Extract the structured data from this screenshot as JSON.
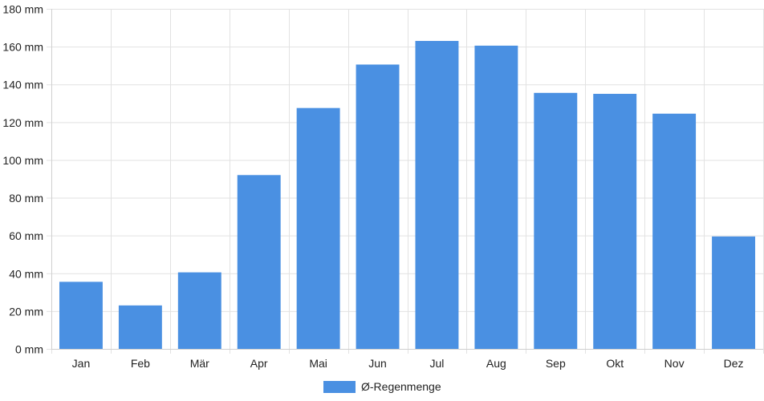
{
  "chart_data": {
    "type": "bar",
    "categories": [
      "Jan",
      "Feb",
      "Mär",
      "Apr",
      "Mai",
      "Jun",
      "Jul",
      "Aug",
      "Sep",
      "Okt",
      "Nov",
      "Dez"
    ],
    "series": [
      {
        "name": "Ø-Regenmenge",
        "values": [
          35.5,
          23,
          40.5,
          92,
          127.5,
          150.5,
          163,
          160.5,
          135.5,
          135,
          124.5,
          59.5
        ]
      }
    ],
    "y_ticks": [
      "0 mm",
      "20 mm",
      "40 mm",
      "60 mm",
      "80 mm",
      "100 mm",
      "120 mm",
      "140 mm",
      "160 mm",
      "180 mm"
    ],
    "ylim": [
      0,
      180
    ],
    "grid": true,
    "legend_position": "bottom",
    "colors": {
      "bar": "#4a90e2",
      "grid": "#e2e2e2",
      "axis": "#cfcfcf"
    }
  }
}
